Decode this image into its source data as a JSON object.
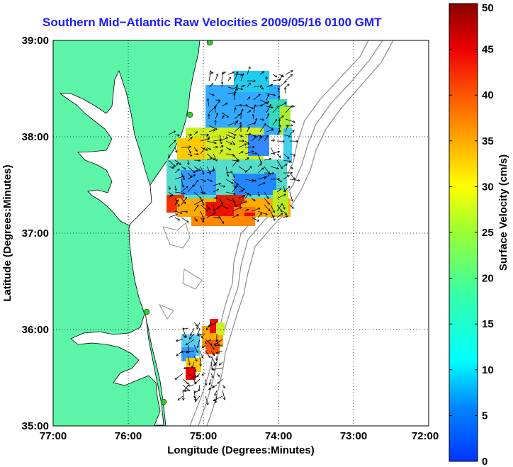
{
  "title": "Southern Mid−Atlantic Raw Velocities 2009/05/16 0100 GMT",
  "axes": {
    "xlabel": "Longitude (Degrees:Minutes)",
    "ylabel": "Latitude (Degrees:Minutes)",
    "xticks": [
      "77:00",
      "76:00",
      "75:00",
      "74:00",
      "73:00",
      "72:00"
    ],
    "yticks": [
      "39:00",
      "38:00",
      "37:00",
      "36:00",
      "35:00"
    ]
  },
  "colorbar": {
    "label": "Surface Velocity (cm/s)",
    "ticks": [
      "0",
      "5",
      "10",
      "15",
      "20",
      "25",
      "30",
      "35",
      "40",
      "45",
      "50"
    ],
    "range": [
      0,
      50
    ]
  },
  "colors": {
    "land": "#5cf5a8",
    "title": "#1a1aff",
    "bathymetry": "#8c8c8c",
    "stations": "#2ecc2e"
  },
  "chart_data": {
    "type": "heatmap",
    "title": "Southern Mid−Atlantic Raw Velocities 2009/05/16 0100 GMT",
    "xlabel": "Longitude (Degrees:Minutes)",
    "ylabel": "Latitude (Degrees:Minutes)",
    "xlim": [
      -77,
      -72
    ],
    "ylim": [
      35,
      39
    ],
    "colorbar_range": [
      0,
      50
    ],
    "colorbar_label": "Surface Velocity (cm/s)",
    "grid": true,
    "regions": [
      {
        "lon_range": [
          -75.5,
          -74.2
        ],
        "lat_range": [
          37.1,
          38.7
        ],
        "velocity_range": [
          5,
          45
        ]
      },
      {
        "lon_range": [
          -75.3,
          -74.7
        ],
        "lat_range": [
          35.5,
          36.1
        ],
        "velocity_range": [
          10,
          45
        ]
      }
    ]
  }
}
